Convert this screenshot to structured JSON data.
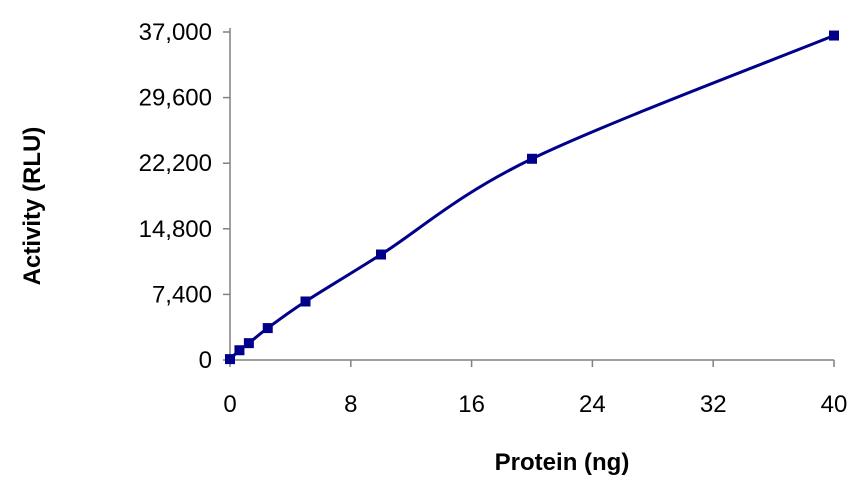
{
  "chart_data": {
    "type": "line",
    "title": "",
    "xlabel": "Protein (ng)",
    "ylabel": "Activity (RLU)",
    "xlim": [
      0,
      40
    ],
    "ylim": [
      0,
      37000
    ],
    "x_ticks": [
      0,
      8,
      16,
      24,
      32,
      40
    ],
    "x_tick_labels": [
      "0",
      "8",
      "16",
      "24",
      "32",
      "40"
    ],
    "y_ticks": [
      0,
      7400,
      14800,
      22200,
      29600,
      37000
    ],
    "y_tick_labels": [
      "0",
      "7,400",
      "14,800",
      "22,200",
      "29,600",
      "37,000"
    ],
    "grid": false,
    "legend": "none",
    "series": [
      {
        "x": [
          0,
          0.625,
          1.25,
          2.5,
          5,
          10,
          20,
          40
        ],
        "y": [
          100,
          1100,
          1900,
          3600,
          6600,
          11900,
          22700,
          36600
        ],
        "color": "#00008b",
        "marker": "square",
        "smooth": true
      }
    ]
  }
}
